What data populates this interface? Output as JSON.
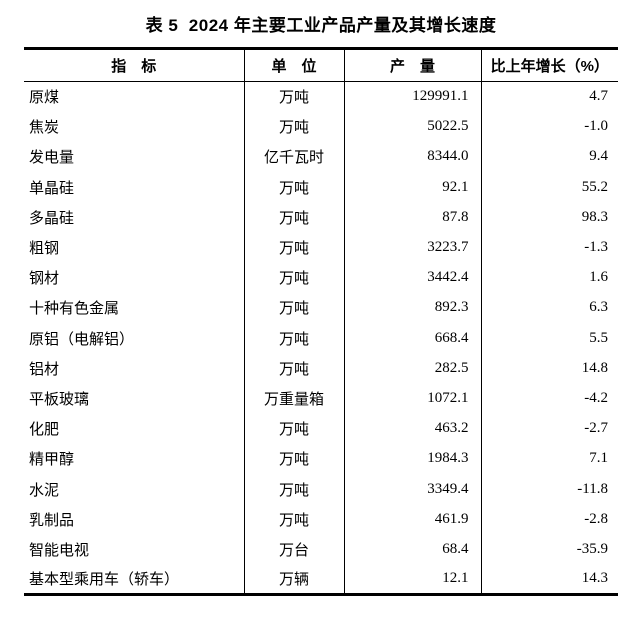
{
  "title": "表 5  2024 年主要工业产品产量及其增长速度",
  "chart_data": {
    "type": "table",
    "columns": [
      "指　标",
      "单　位",
      "产　量",
      "比上年增长（%）"
    ],
    "rows": [
      [
        "原煤",
        "万吨",
        "129991.1",
        "4.7"
      ],
      [
        "焦炭",
        "万吨",
        "5022.5",
        "-1.0"
      ],
      [
        "发电量",
        "亿千瓦时",
        "8344.0",
        "9.4"
      ],
      [
        "单晶硅",
        "万吨",
        "92.1",
        "55.2"
      ],
      [
        "多晶硅",
        "万吨",
        "87.8",
        "98.3"
      ],
      [
        "粗钢",
        "万吨",
        "3223.7",
        "-1.3"
      ],
      [
        "钢材",
        "万吨",
        "3442.4",
        "1.6"
      ],
      [
        "十种有色金属",
        "万吨",
        "892.3",
        "6.3"
      ],
      [
        "原铝（电解铝）",
        "万吨",
        "668.4",
        "5.5"
      ],
      [
        "铝材",
        "万吨",
        "282.5",
        "14.8"
      ],
      [
        "平板玻璃",
        "万重量箱",
        "1072.1",
        "-4.2"
      ],
      [
        "化肥",
        "万吨",
        "463.2",
        "-2.7"
      ],
      [
        "精甲醇",
        "万吨",
        "1984.3",
        "7.1"
      ],
      [
        "水泥",
        "万吨",
        "3349.4",
        "-11.8"
      ],
      [
        "乳制品",
        "万吨",
        "461.9",
        "-2.8"
      ],
      [
        "智能电视",
        "万台",
        "68.4",
        "-35.9"
      ],
      [
        "基本型乘用车（轿车）",
        "万辆",
        "12.1",
        "14.3"
      ]
    ]
  },
  "colors": {
    "text": "#000000",
    "background": "#ffffff",
    "border": "#000000"
  }
}
